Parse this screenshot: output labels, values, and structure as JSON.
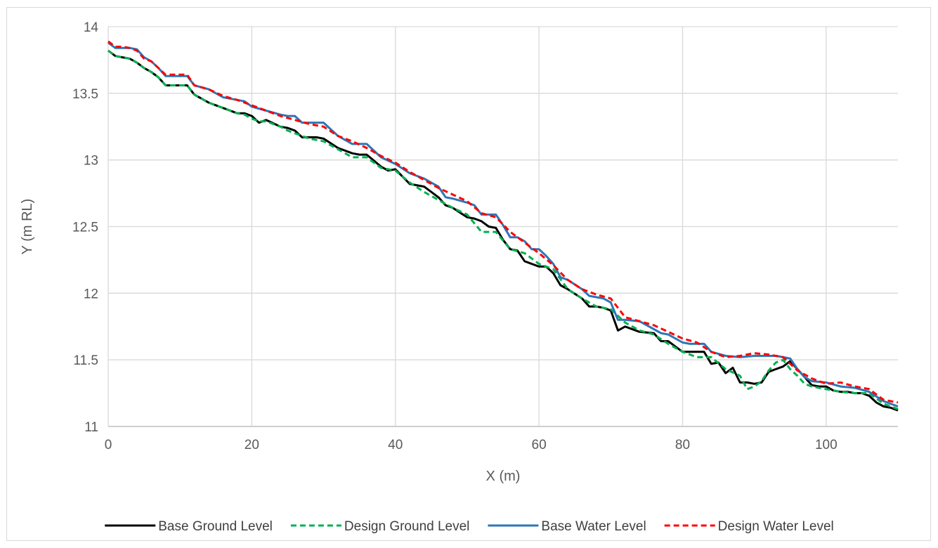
{
  "chart_data": {
    "type": "line",
    "title": "",
    "xlabel": "X (m)",
    "ylabel": "Y (m RL)",
    "xlim": [
      0,
      110
    ],
    "ylim": [
      11,
      14
    ],
    "x_ticks": [
      0,
      20,
      40,
      60,
      80,
      100
    ],
    "y_ticks": [
      11,
      11.5,
      12,
      12.5,
      13,
      13.5,
      14
    ],
    "x_tick_labels": [
      "0",
      "20",
      "40",
      "60",
      "80",
      "100"
    ],
    "y_tick_labels": [
      "11",
      "11.5",
      "12",
      "12.5",
      "13",
      "13.5",
      "14"
    ],
    "grid": true,
    "legend_position": "bottom",
    "series": [
      {
        "name": "Base Ground Level",
        "color": "#000000",
        "dash": "solid",
        "x": [
          0,
          1,
          2,
          3,
          4,
          5,
          6,
          7,
          8,
          9,
          10,
          11,
          12,
          14,
          16,
          18,
          19,
          20,
          21,
          22,
          24,
          25,
          26,
          27,
          28,
          29,
          30,
          32,
          34,
          35,
          36,
          38,
          39,
          40,
          42,
          44,
          45,
          46,
          47,
          48,
          50,
          51,
          52,
          53,
          54,
          55,
          56,
          57,
          58,
          59,
          60,
          61,
          62,
          63,
          64,
          66,
          67,
          68,
          69,
          70,
          71,
          72,
          74,
          76,
          77,
          78,
          79,
          80,
          81,
          82,
          83,
          84,
          85,
          86,
          87,
          88,
          89,
          90,
          91,
          92,
          93,
          94,
          95,
          96,
          97,
          98,
          99,
          100,
          101,
          102,
          103,
          104,
          105,
          106,
          107,
          108,
          109,
          110
        ],
        "y": [
          13.82,
          13.78,
          13.77,
          13.76,
          13.73,
          13.69,
          13.66,
          13.62,
          13.56,
          13.56,
          13.56,
          13.56,
          13.49,
          13.43,
          13.39,
          13.35,
          13.35,
          13.33,
          13.28,
          13.3,
          13.25,
          13.24,
          13.22,
          13.17,
          13.17,
          13.17,
          13.16,
          13.09,
          13.05,
          13.04,
          13.04,
          12.95,
          12.92,
          12.93,
          12.82,
          12.8,
          12.76,
          12.72,
          12.66,
          12.64,
          12.57,
          12.56,
          12.54,
          12.5,
          12.49,
          12.4,
          12.33,
          12.32,
          12.24,
          12.22,
          12.2,
          12.2,
          12.15,
          12.06,
          12.03,
          11.96,
          11.9,
          11.9,
          11.89,
          11.87,
          11.72,
          11.75,
          11.71,
          11.7,
          11.64,
          11.64,
          11.6,
          11.56,
          11.56,
          11.56,
          11.56,
          11.47,
          11.48,
          11.4,
          11.44,
          11.33,
          11.33,
          11.32,
          11.33,
          11.41,
          11.43,
          11.45,
          11.49,
          11.43,
          11.37,
          11.31,
          11.3,
          11.3,
          11.27,
          11.26,
          11.26,
          11.25,
          11.25,
          11.23,
          11.18,
          11.15,
          11.14,
          11.12
        ]
      },
      {
        "name": "Design Ground Level",
        "color": "#00b050",
        "dash": "dashed",
        "x": [
          0,
          1,
          2,
          3,
          4,
          5,
          6,
          7,
          8,
          9,
          10,
          11,
          12,
          14,
          16,
          18,
          19,
          20,
          21,
          22,
          24,
          25,
          26,
          28,
          30,
          32,
          34,
          36,
          38,
          40,
          42,
          44,
          46,
          48,
          50,
          52,
          54,
          56,
          58,
          60,
          62,
          64,
          66,
          68,
          70,
          72,
          74,
          76,
          78,
          80,
          82,
          84,
          86,
          88,
          89,
          90,
          91,
          92,
          93,
          94,
          95,
          96,
          97,
          98,
          100,
          102,
          104,
          106,
          108,
          110
        ],
        "y": [
          13.82,
          13.78,
          13.77,
          13.76,
          13.73,
          13.69,
          13.66,
          13.62,
          13.56,
          13.56,
          13.56,
          13.56,
          13.49,
          13.43,
          13.39,
          13.35,
          13.34,
          13.31,
          13.29,
          13.29,
          13.25,
          13.22,
          13.2,
          13.16,
          13.14,
          13.08,
          13.02,
          13.02,
          12.94,
          12.92,
          12.83,
          12.76,
          12.7,
          12.64,
          12.59,
          12.46,
          12.46,
          12.33,
          12.3,
          12.22,
          12.18,
          12.03,
          11.96,
          11.9,
          11.88,
          11.78,
          11.72,
          11.69,
          11.62,
          11.56,
          11.52,
          11.52,
          11.43,
          11.38,
          11.28,
          11.3,
          11.34,
          11.42,
          11.48,
          11.5,
          11.43,
          11.38,
          11.32,
          11.3,
          11.28,
          11.26,
          11.25,
          11.25,
          11.17,
          11.13
        ]
      },
      {
        "name": "Base Water Level",
        "color": "#2e75b6",
        "dash": "solid",
        "x": [
          0,
          1,
          2,
          3,
          4,
          5,
          6,
          7,
          8,
          9,
          10,
          11,
          12,
          14,
          16,
          18,
          19,
          20,
          22,
          24,
          25,
          26,
          27,
          28,
          29,
          30,
          32,
          34,
          35,
          36,
          38,
          40,
          42,
          44,
          45,
          46,
          47,
          48,
          50,
          51,
          52,
          53,
          54,
          55,
          56,
          57,
          58,
          59,
          60,
          61,
          62,
          63,
          64,
          66,
          67,
          68,
          69,
          70,
          71,
          72,
          74,
          76,
          77,
          78,
          80,
          81,
          82,
          83,
          84,
          86,
          88,
          90,
          92,
          93,
          94,
          95,
          96,
          97,
          98,
          100,
          102,
          104,
          106,
          108,
          110
        ],
        "y": [
          13.88,
          13.84,
          13.84,
          13.84,
          13.83,
          13.77,
          13.74,
          13.69,
          13.63,
          13.63,
          13.63,
          13.63,
          13.56,
          13.53,
          13.47,
          13.45,
          13.44,
          13.4,
          13.37,
          13.34,
          13.33,
          13.33,
          13.28,
          13.28,
          13.28,
          13.28,
          13.18,
          13.12,
          13.12,
          13.12,
          13.02,
          12.97,
          12.9,
          12.86,
          12.83,
          12.8,
          12.72,
          12.71,
          12.68,
          12.66,
          12.59,
          12.59,
          12.59,
          12.51,
          12.42,
          12.42,
          12.39,
          12.33,
          12.33,
          12.28,
          12.22,
          12.12,
          12.1,
          12.03,
          11.98,
          11.97,
          11.96,
          11.93,
          11.8,
          11.8,
          11.79,
          11.73,
          11.7,
          11.69,
          11.63,
          11.62,
          11.62,
          11.62,
          11.56,
          11.53,
          11.52,
          11.53,
          11.53,
          11.53,
          11.52,
          11.51,
          11.43,
          11.37,
          11.34,
          11.33,
          11.3,
          11.29,
          11.26,
          11.19,
          11.15
        ]
      },
      {
        "name": "Design Water Level",
        "color": "#ff0000",
        "dash": "dashed",
        "x": [
          0,
          1,
          2,
          3,
          4,
          5,
          6,
          7,
          8,
          9,
          10,
          11,
          12,
          14,
          16,
          18,
          20,
          22,
          24,
          26,
          28,
          30,
          32,
          34,
          36,
          38,
          40,
          42,
          44,
          46,
          48,
          50,
          52,
          54,
          56,
          58,
          60,
          62,
          64,
          66,
          68,
          70,
          72,
          74,
          76,
          78,
          80,
          82,
          84,
          86,
          88,
          90,
          92,
          94,
          96,
          98,
          100,
          102,
          104,
          106,
          108,
          110
        ],
        "y": [
          13.89,
          13.85,
          13.85,
          13.84,
          13.82,
          13.76,
          13.74,
          13.69,
          13.64,
          13.64,
          13.64,
          13.64,
          13.56,
          13.53,
          13.48,
          13.45,
          13.41,
          13.37,
          13.33,
          13.3,
          13.27,
          13.25,
          13.18,
          13.14,
          13.09,
          13.03,
          12.98,
          12.91,
          12.85,
          12.79,
          12.74,
          12.69,
          12.6,
          12.57,
          12.46,
          12.38,
          12.3,
          12.21,
          12.1,
          12.03,
          11.99,
          11.96,
          11.82,
          11.79,
          11.76,
          11.71,
          11.66,
          11.63,
          11.56,
          11.52,
          11.53,
          11.55,
          11.54,
          11.52,
          11.42,
          11.36,
          11.32,
          11.33,
          11.3,
          11.28,
          11.2,
          11.18
        ]
      }
    ]
  }
}
